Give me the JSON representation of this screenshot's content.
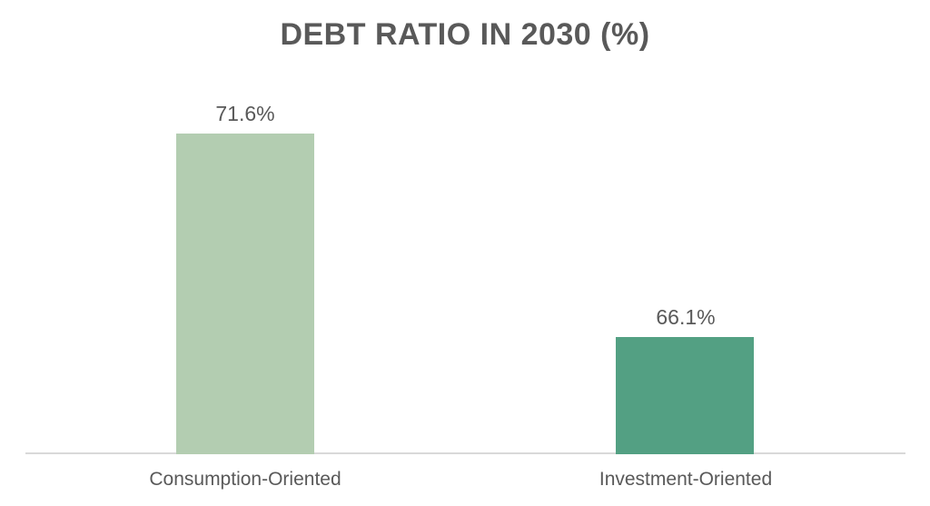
{
  "chart_data": {
    "type": "bar",
    "title": "DEBT RATIO IN 2030 (%)",
    "categories": [
      "Consumption-Oriented",
      "Investment-Oriented"
    ],
    "values": [
      71.6,
      66.1
    ],
    "value_labels": [
      "71.6%",
      "66.1%"
    ],
    "xlabel": "",
    "ylabel": "",
    "ylim": [
      63,
      74
    ],
    "grid": false,
    "legend": "none",
    "bar_colors": [
      "#b3cdb1",
      "#53a083"
    ],
    "text_color": "#595959",
    "axis_line_color": "#d9d9d9",
    "background": "#ffffff"
  }
}
